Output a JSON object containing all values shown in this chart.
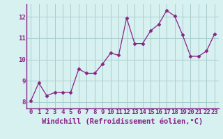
{
  "x": [
    0,
    1,
    2,
    3,
    4,
    5,
    6,
    7,
    8,
    9,
    10,
    11,
    12,
    13,
    14,
    15,
    16,
    17,
    18,
    19,
    20,
    21,
    22,
    23
  ],
  "y": [
    8.05,
    8.9,
    8.3,
    8.45,
    8.45,
    8.45,
    9.55,
    9.35,
    9.35,
    9.8,
    10.3,
    10.2,
    11.95,
    10.75,
    10.75,
    11.35,
    11.65,
    12.3,
    12.05,
    11.15,
    10.15,
    10.15,
    10.4,
    11.2
  ],
  "line_color": "#882288",
  "marker": "D",
  "marker_size": 2.5,
  "bg_color": "#d7f0f0",
  "grid_color": "#aacccc",
  "xlabel": "Windchill (Refroidissement éolien,°C)",
  "xlabel_fontsize": 7.5,
  "tick_fontsize": 6.5,
  "yticks": [
    8,
    9,
    10,
    11,
    12
  ],
  "ylim": [
    7.7,
    12.6
  ],
  "xlim": [
    -0.5,
    23.5
  ],
  "xticks": [
    0,
    1,
    2,
    3,
    4,
    5,
    6,
    7,
    8,
    9,
    10,
    11,
    12,
    13,
    14,
    15,
    16,
    17,
    18,
    19,
    20,
    21,
    22,
    23
  ]
}
